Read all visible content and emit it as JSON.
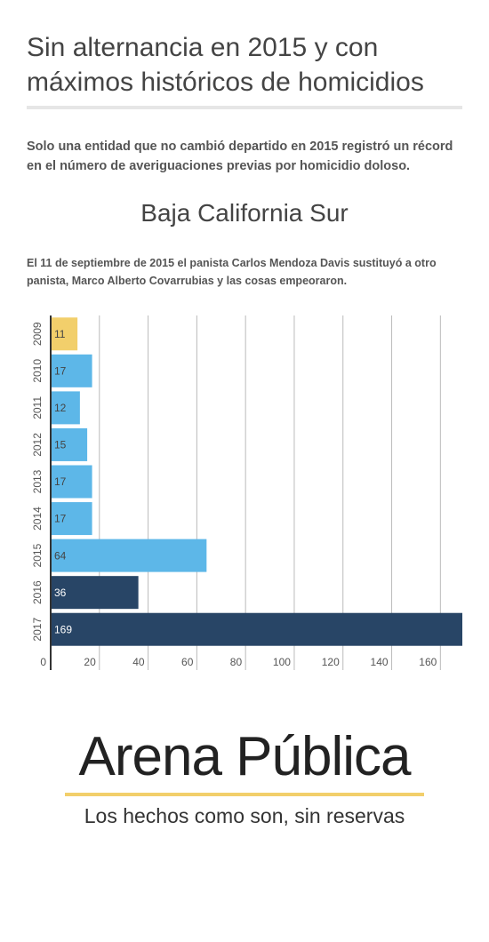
{
  "header": {
    "title": "Sin alternancia en 2015 y con máximos históricos de homicidios",
    "subtitle": "Solo una entidad que no cambió departido en 2015 registró un récord en el número de averiguaciones previas por homicidio doloso."
  },
  "chart_data": {
    "type": "bar",
    "orientation": "horizontal",
    "title": "Baja California Sur",
    "description": "El 11 de septiembre de 2015 el panista Carlos Mendoza Davis sustituyó a otro panista, Marco Alberto Covarrubias y las cosas empeoraron.",
    "categories": [
      "2009",
      "2010",
      "2011",
      "2012",
      "2013",
      "2014",
      "2015",
      "2016",
      "2017"
    ],
    "values": [
      11,
      17,
      12,
      15,
      17,
      17,
      64,
      36,
      169
    ],
    "colors": [
      "#f2cf6b",
      "#5db7e8",
      "#5db7e8",
      "#5db7e8",
      "#5db7e8",
      "#5db7e8",
      "#5db7e8",
      "#284566",
      "#284566"
    ],
    "xlim": [
      0,
      169
    ],
    "xticks": [
      0,
      20,
      40,
      60,
      80,
      100,
      120,
      140,
      160
    ],
    "grid": true
  },
  "logo": {
    "name": "Arena Pública",
    "tagline": "Los hechos como son, sin reservas"
  }
}
